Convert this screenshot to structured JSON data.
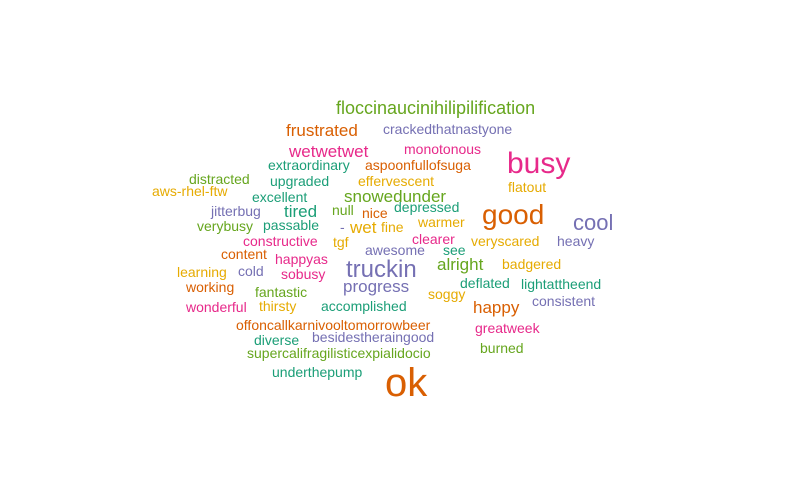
{
  "chart_data": {
    "type": "wordcloud",
    "palette": {
      "teal": "#1b9e77",
      "orange": "#d95f02",
      "purple": "#7570b3",
      "pink": "#e7298a",
      "green": "#66a61e",
      "gold": "#e6ab02"
    },
    "words": [
      {
        "text": "floccinaucinihilipilification",
        "color": "green"
      },
      {
        "text": "frustrated",
        "color": "orange"
      },
      {
        "text": "crackedthatnastyone",
        "color": "purple"
      },
      {
        "text": "wetwetwet",
        "color": "pink"
      },
      {
        "text": "monotonous",
        "color": "pink"
      },
      {
        "text": "busy",
        "color": "pink"
      },
      {
        "text": "extraordinary",
        "color": "teal"
      },
      {
        "text": "aspoonfullofsuga",
        "color": "orange"
      },
      {
        "text": "distracted",
        "color": "green"
      },
      {
        "text": "upgraded",
        "color": "teal"
      },
      {
        "text": "effervescent",
        "color": "gold"
      },
      {
        "text": "flatout",
        "color": "gold"
      },
      {
        "text": "aws-rhel-ftw",
        "color": "gold"
      },
      {
        "text": "excellent",
        "color": "teal"
      },
      {
        "text": "snowedunder",
        "color": "green"
      },
      {
        "text": "good",
        "color": "orange"
      },
      {
        "text": "jitterbug",
        "color": "purple"
      },
      {
        "text": "tired",
        "color": "teal"
      },
      {
        "text": "null",
        "color": "green"
      },
      {
        "text": "nice",
        "color": "orange"
      },
      {
        "text": "depressed",
        "color": "teal"
      },
      {
        "text": "cool",
        "color": "purple"
      },
      {
        "text": "warmer",
        "color": "gold"
      },
      {
        "text": "verybusy",
        "color": "green"
      },
      {
        "text": "passable",
        "color": "teal"
      },
      {
        "text": "-",
        "color": "purple"
      },
      {
        "text": "wet",
        "color": "gold"
      },
      {
        "text": "fine",
        "color": "gold"
      },
      {
        "text": "constructive",
        "color": "pink"
      },
      {
        "text": "tgf",
        "color": "gold"
      },
      {
        "text": "clearer",
        "color": "pink"
      },
      {
        "text": "veryscared",
        "color": "gold"
      },
      {
        "text": "heavy",
        "color": "purple"
      },
      {
        "text": "awesome",
        "color": "purple"
      },
      {
        "text": "see",
        "color": "teal"
      },
      {
        "text": "content",
        "color": "orange"
      },
      {
        "text": "happyas",
        "color": "pink"
      },
      {
        "text": "truckin",
        "color": "purple"
      },
      {
        "text": "alright",
        "color": "green"
      },
      {
        "text": "badgered",
        "color": "gold"
      },
      {
        "text": "learning",
        "color": "gold"
      },
      {
        "text": "cold",
        "color": "purple"
      },
      {
        "text": "sobusy",
        "color": "pink"
      },
      {
        "text": "deflated",
        "color": "teal"
      },
      {
        "text": "lightattheend",
        "color": "teal"
      },
      {
        "text": "working",
        "color": "orange"
      },
      {
        "text": "progress",
        "color": "purple"
      },
      {
        "text": "fantastic",
        "color": "green"
      },
      {
        "text": "soggy",
        "color": "gold"
      },
      {
        "text": "consistent",
        "color": "purple"
      },
      {
        "text": "wonderful",
        "color": "pink"
      },
      {
        "text": "thirsty",
        "color": "gold"
      },
      {
        "text": "accomplished",
        "color": "teal"
      },
      {
        "text": "happy",
        "color": "orange"
      },
      {
        "text": "offoncallkarnivooltomorrowbeer",
        "color": "orange"
      },
      {
        "text": "greatweek",
        "color": "pink"
      },
      {
        "text": "diverse",
        "color": "teal"
      },
      {
        "text": "besidestheraingood",
        "color": "purple"
      },
      {
        "text": "supercalifragilisticexpialidocio",
        "color": "green"
      },
      {
        "text": "burned",
        "color": "green"
      },
      {
        "text": "underthepump",
        "color": "teal"
      },
      {
        "text": "ok",
        "color": "orange"
      }
    ]
  }
}
